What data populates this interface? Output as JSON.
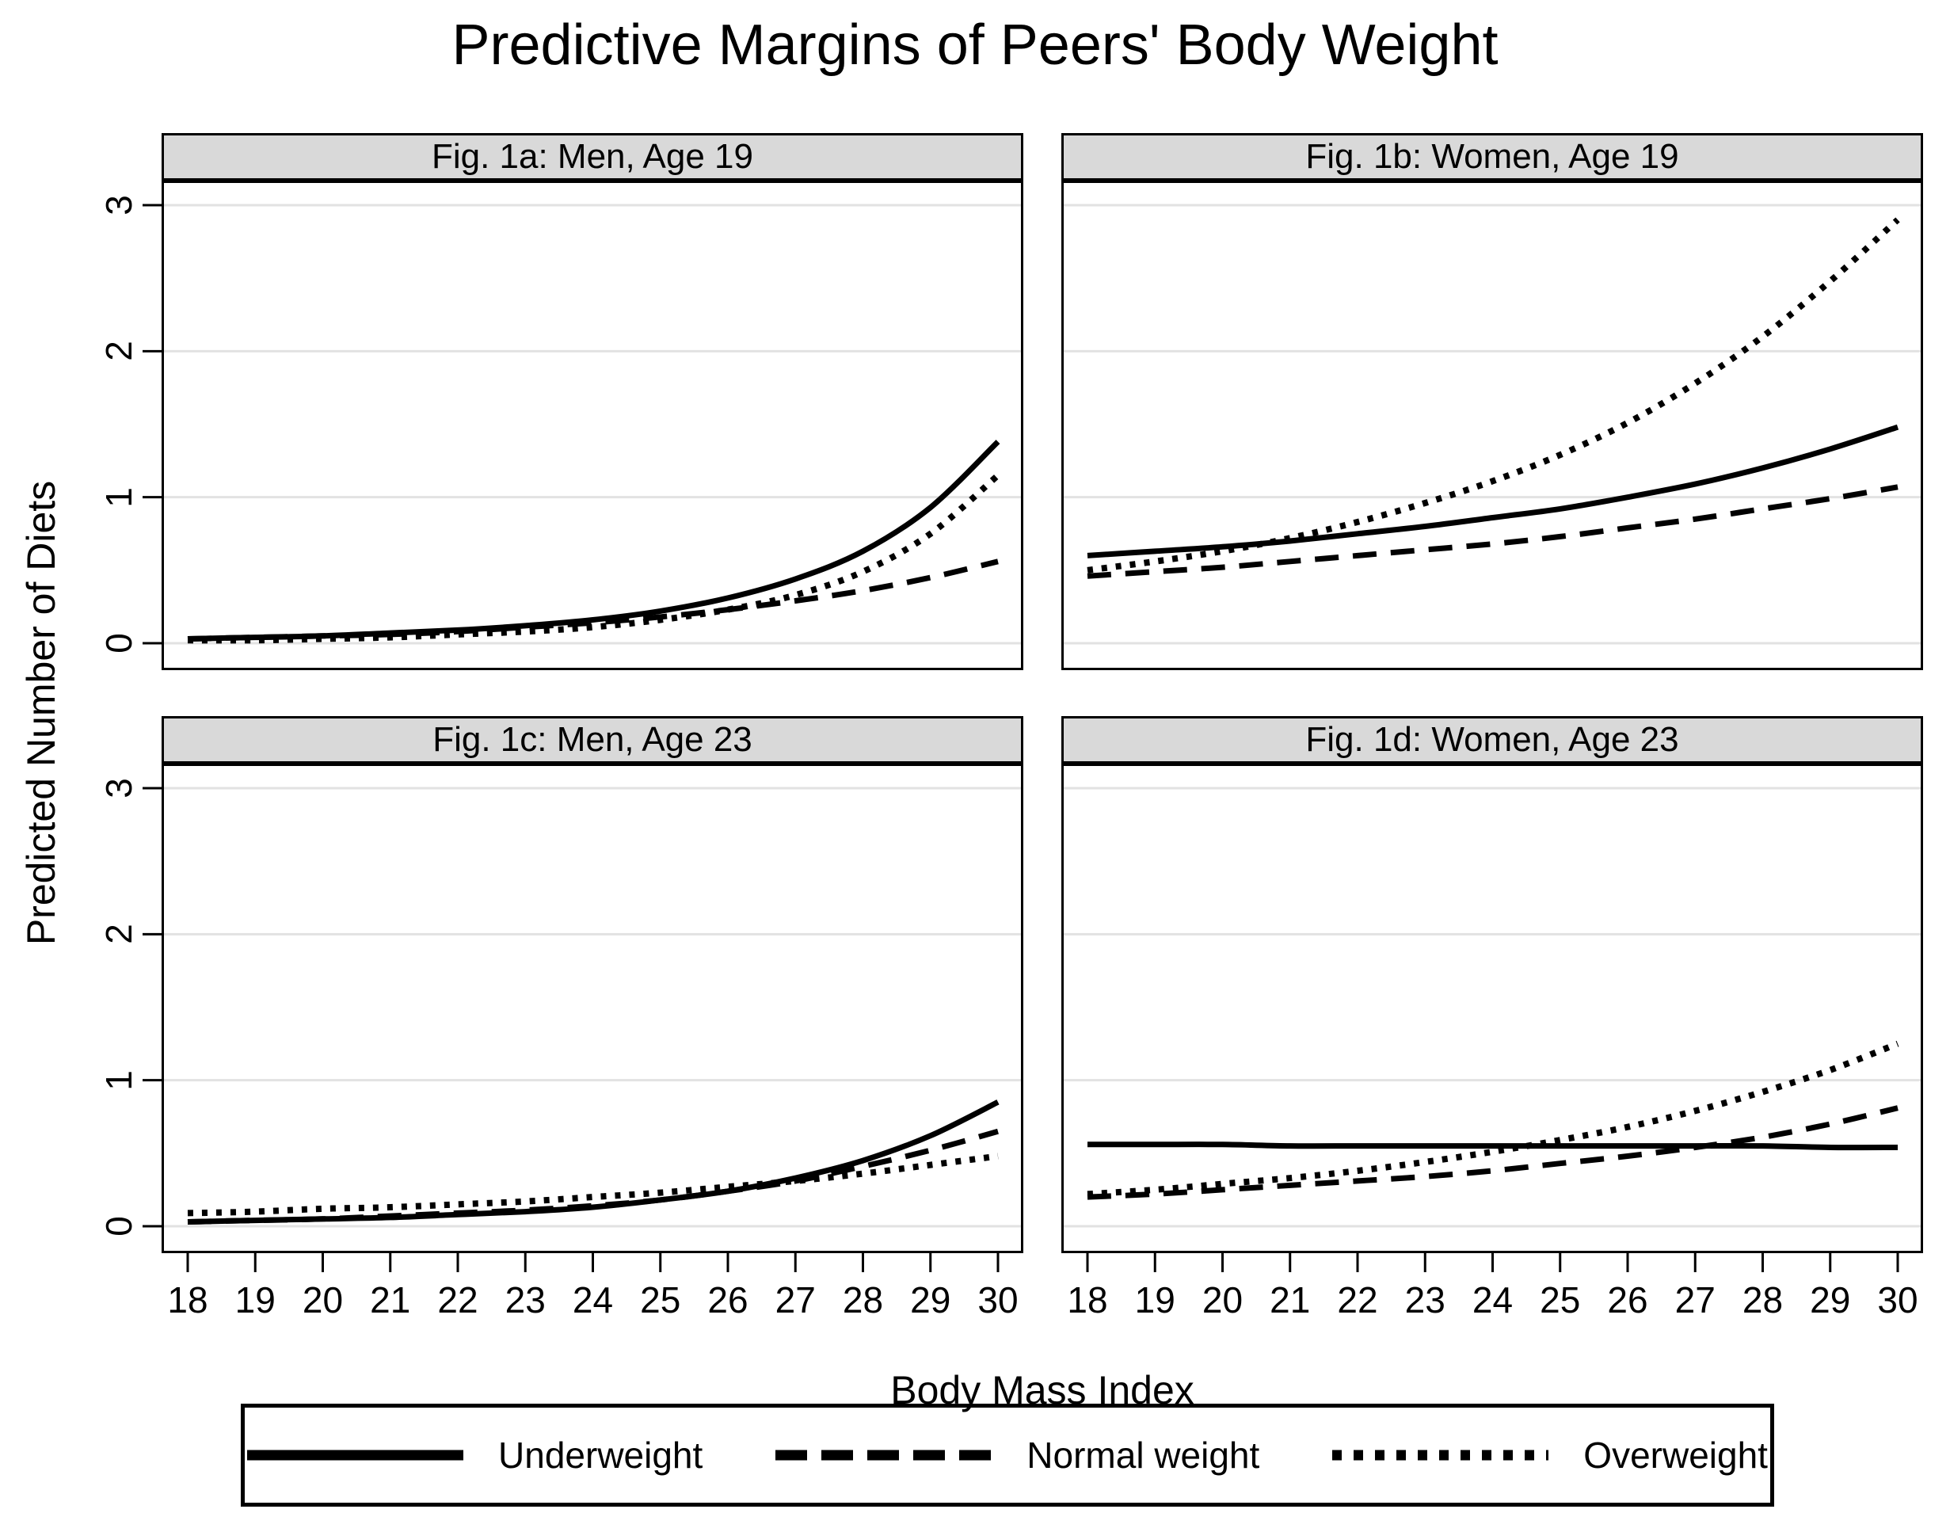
{
  "chart_data": {
    "type": "line",
    "title": "Predictive Margins of Peers' Body Weight",
    "xlabel": "Body Mass Index",
    "ylabel": "Predicted Number of Diets",
    "x": [
      18,
      19,
      20,
      21,
      22,
      23,
      24,
      25,
      26,
      27,
      28,
      29,
      30
    ],
    "xlim": [
      17.6,
      30.4
    ],
    "ylim": [
      -0.18,
      3.17
    ],
    "yticks": [
      0,
      1,
      2,
      3
    ],
    "grid": "horizontal",
    "legend_position": "bottom",
    "legend": [
      {
        "label": "Underweight",
        "line_style": "solid"
      },
      {
        "label": "Normal weight",
        "line_style": "dashed"
      },
      {
        "label": "Overweight",
        "line_style": "dotted"
      }
    ],
    "panels": [
      {
        "title": "Fig. 1a: Men, Age 19",
        "series": [
          {
            "name": "Underweight",
            "line_style": "solid",
            "values": [
              0.03,
              0.04,
              0.05,
              0.07,
              0.09,
              0.12,
              0.16,
              0.22,
              0.31,
              0.44,
              0.63,
              0.93,
              1.38
            ]
          },
          {
            "name": "Normal weight",
            "line_style": "dashed",
            "values": [
              0.03,
              0.04,
              0.05,
              0.06,
              0.08,
              0.11,
              0.14,
              0.18,
              0.23,
              0.29,
              0.36,
              0.45,
              0.56
            ]
          },
          {
            "name": "Overweight",
            "line_style": "dotted",
            "values": [
              0.02,
              0.02,
              0.03,
              0.04,
              0.06,
              0.08,
              0.11,
              0.16,
              0.23,
              0.33,
              0.49,
              0.75,
              1.15
            ]
          }
        ]
      },
      {
        "title": "Fig. 1b: Women, Age 19",
        "series": [
          {
            "name": "Underweight",
            "line_style": "solid",
            "values": [
              0.6,
              0.63,
              0.66,
              0.7,
              0.75,
              0.8,
              0.86,
              0.92,
              1.0,
              1.09,
              1.2,
              1.33,
              1.48
            ]
          },
          {
            "name": "Normal weight",
            "line_style": "dashed",
            "values": [
              0.46,
              0.49,
              0.52,
              0.56,
              0.6,
              0.64,
              0.68,
              0.73,
              0.79,
              0.85,
              0.92,
              0.99,
              1.07
            ]
          },
          {
            "name": "Overweight",
            "line_style": "dotted",
            "values": [
              0.5,
              0.56,
              0.63,
              0.72,
              0.83,
              0.96,
              1.11,
              1.29,
              1.51,
              1.78,
              2.1,
              2.48,
              2.9
            ]
          }
        ]
      },
      {
        "title": "Fig. 1c: Men, Age 23",
        "series": [
          {
            "name": "Underweight",
            "line_style": "solid",
            "values": [
              0.03,
              0.04,
              0.05,
              0.06,
              0.08,
              0.1,
              0.13,
              0.18,
              0.24,
              0.33,
              0.45,
              0.62,
              0.85
            ]
          },
          {
            "name": "Normal weight",
            "line_style": "dashed",
            "values": [
              0.03,
              0.04,
              0.05,
              0.07,
              0.09,
              0.11,
              0.14,
              0.18,
              0.24,
              0.31,
              0.41,
              0.52,
              0.65
            ]
          },
          {
            "name": "Overweight",
            "line_style": "dotted",
            "values": [
              0.09,
              0.1,
              0.12,
              0.13,
              0.15,
              0.17,
              0.2,
              0.23,
              0.27,
              0.31,
              0.36,
              0.42,
              0.48
            ]
          }
        ]
      },
      {
        "title": "Fig. 1d: Women, Age 23",
        "series": [
          {
            "name": "Underweight",
            "line_style": "solid",
            "values": [
              0.56,
              0.56,
              0.56,
              0.55,
              0.55,
              0.55,
              0.55,
              0.55,
              0.55,
              0.55,
              0.55,
              0.54,
              0.54
            ]
          },
          {
            "name": "Normal weight",
            "line_style": "dashed",
            "values": [
              0.2,
              0.22,
              0.25,
              0.28,
              0.31,
              0.34,
              0.38,
              0.43,
              0.48,
              0.54,
              0.61,
              0.7,
              0.81
            ]
          },
          {
            "name": "Overweight",
            "line_style": "dotted",
            "values": [
              0.22,
              0.25,
              0.29,
              0.33,
              0.38,
              0.44,
              0.51,
              0.59,
              0.68,
              0.79,
              0.92,
              1.07,
              1.25
            ]
          }
        ]
      }
    ],
    "colors": {
      "line": "#000000",
      "gridline": "#e2e2e2",
      "panel_header_bg": "#d9d9d9",
      "border": "#000000"
    }
  }
}
